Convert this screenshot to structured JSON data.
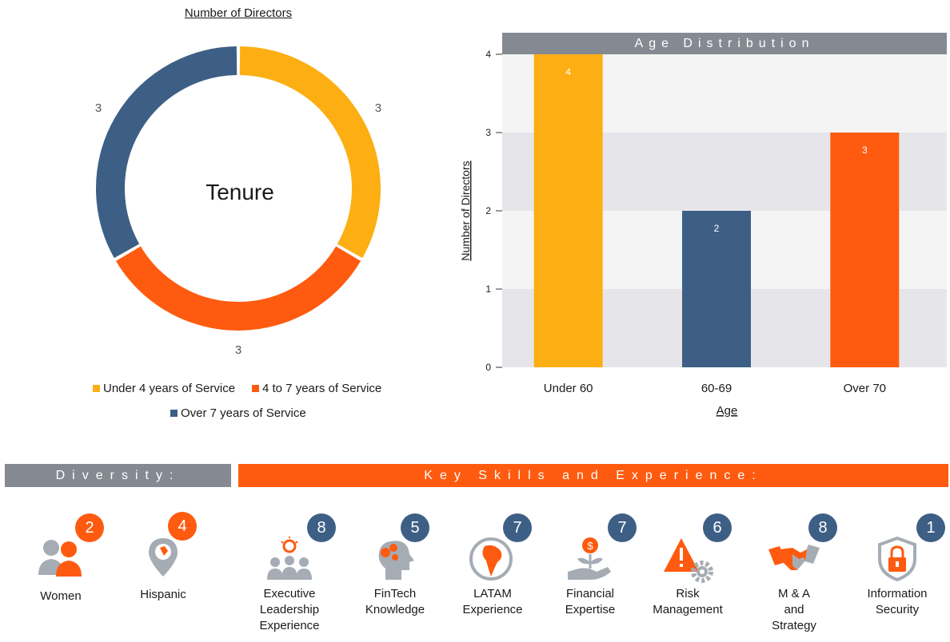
{
  "colors": {
    "gold": "#fdae12",
    "orange": "#fe5b10",
    "navy": "#3e5f85",
    "gray": "#858a92",
    "icon_gray": "#a6acb4"
  },
  "chart_data": [
    {
      "type": "pie",
      "title": "Number of Directors",
      "center_label": "Tenure",
      "categories": [
        "Under 4 years of Service",
        "4 to 7 years of Service",
        "Over 7 years of Service"
      ],
      "values": [
        3,
        3,
        3
      ],
      "colors": [
        "#fdae12",
        "#fe5b10",
        "#3e5f85"
      ],
      "legend": "bottom"
    },
    {
      "type": "bar",
      "title": "Age Distribution",
      "categories": [
        "Under 60",
        "60-69",
        "Over 70"
      ],
      "values": [
        4,
        2,
        3
      ],
      "colors": [
        "#fdae12",
        "#3e5f85",
        "#fe5b10"
      ],
      "xlabel": "Age",
      "ylabel": "Number of Directors",
      "ylim": [
        0,
        4
      ],
      "yticks": [
        "0",
        "1",
        "2",
        "3",
        "4"
      ],
      "grid": true
    }
  ],
  "diversity": {
    "title": "Diversity:",
    "items": [
      {
        "label": "Women",
        "count": "2",
        "icon": "women-icon"
      },
      {
        "label": "Hispanic",
        "count": "4",
        "icon": "location-pin-icon"
      }
    ]
  },
  "skills": {
    "title": "Key Skills and Experience:",
    "items": [
      {
        "label_lines": [
          "Executive",
          "Leadership",
          "Experience"
        ],
        "count": "8",
        "icon": "leadership-icon"
      },
      {
        "label_lines": [
          "FinTech",
          "Knowledge"
        ],
        "count": "5",
        "icon": "fintech-icon"
      },
      {
        "label_lines": [
          "LATAM",
          "Experience"
        ],
        "count": "7",
        "icon": "latam-icon"
      },
      {
        "label_lines": [
          "Financial",
          "Expertise"
        ],
        "count": "7",
        "icon": "financial-icon"
      },
      {
        "label_lines": [
          "Risk",
          "Management"
        ],
        "count": "6",
        "icon": "risk-icon"
      },
      {
        "label_lines": [
          "M & A",
          "and",
          "Strategy"
        ],
        "count": "8",
        "icon": "handshake-icon"
      },
      {
        "label_lines": [
          "Information",
          "Security"
        ],
        "count": "1",
        "icon": "security-icon"
      }
    ]
  }
}
